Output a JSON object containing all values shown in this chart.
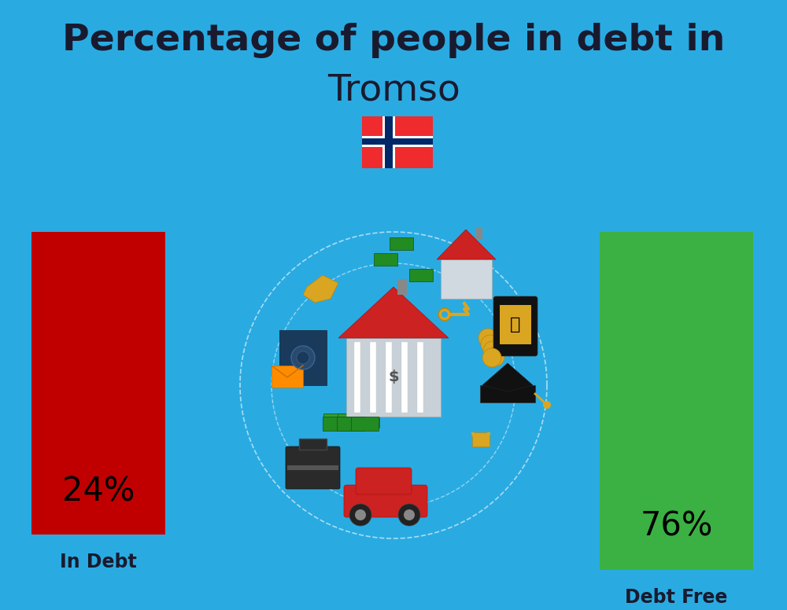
{
  "title_line1": "Percentage of people in debt in",
  "title_line2": "Tromso",
  "background_color": "#29ABE2",
  "bar1_label": "24%",
  "bar1_color": "#C00000",
  "bar1_caption": "In Debt",
  "bar2_label": "76%",
  "bar2_color": "#3BB143",
  "bar2_caption": "Debt Free",
  "title_color": "#1a1a2e",
  "caption_color": "#1a1a2e",
  "title_fontsize": 34,
  "subtitle_fontsize": 34,
  "bar_label_fontsize": 30,
  "caption_fontsize": 17,
  "flag_red": "#EF2B2D",
  "flag_blue": "#002868",
  "flag_white": "#FFFFFF"
}
